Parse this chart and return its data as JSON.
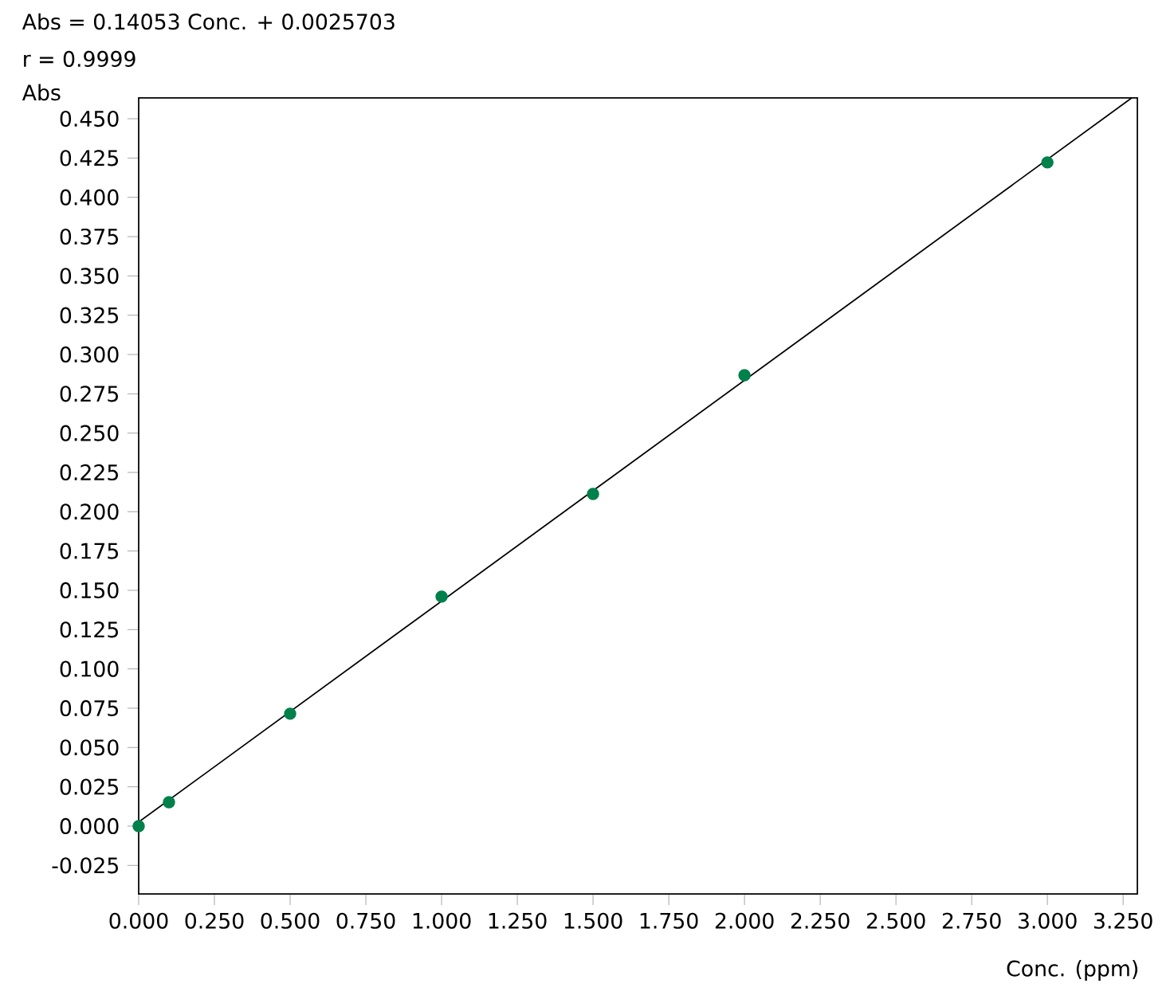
{
  "chart_data": {
    "type": "scatter",
    "annotations": [
      "Abs = 0.14053 Conc. + 0.0025703",
      "r = 0.9999"
    ],
    "xlabel": "Conc. (ppm)",
    "ylabel": "Abs",
    "xlim": [
      0,
      3.297
    ],
    "ylim": [
      -0.0431,
      0.4632
    ],
    "xticks": [
      {
        "value": 0,
        "label": "0.000"
      },
      {
        "value": 0.25,
        "label": "0.250"
      },
      {
        "value": 0.5,
        "label": "0.500"
      },
      {
        "value": 0.75,
        "label": "0.750"
      },
      {
        "value": 1,
        "label": "1.000"
      },
      {
        "value": 1.25,
        "label": "1.250"
      },
      {
        "value": 1.5,
        "label": "1.500"
      },
      {
        "value": 1.75,
        "label": "1.750"
      },
      {
        "value": 2,
        "label": "2.000"
      },
      {
        "value": 2.25,
        "label": "2.250"
      },
      {
        "value": 2.5,
        "label": "2.500"
      },
      {
        "value": 2.75,
        "label": "2.750"
      },
      {
        "value": 3,
        "label": "3.000"
      },
      {
        "value": 3.25,
        "label": "3.250"
      }
    ],
    "yticks": [
      {
        "value": -0.025,
        "label": "-0.025"
      },
      {
        "value": 0,
        "label": "0.000"
      },
      {
        "value": 0.025,
        "label": "0.025"
      },
      {
        "value": 0.05,
        "label": "0.050"
      },
      {
        "value": 0.075,
        "label": "0.075"
      },
      {
        "value": 0.1,
        "label": "0.100"
      },
      {
        "value": 0.125,
        "label": "0.125"
      },
      {
        "value": 0.15,
        "label": "0.150"
      },
      {
        "value": 0.175,
        "label": "0.175"
      },
      {
        "value": 0.2,
        "label": "0.200"
      },
      {
        "value": 0.225,
        "label": "0.225"
      },
      {
        "value": 0.25,
        "label": "0.250"
      },
      {
        "value": 0.275,
        "label": "0.275"
      },
      {
        "value": 0.3,
        "label": "0.300"
      },
      {
        "value": 0.325,
        "label": "0.325"
      },
      {
        "value": 0.35,
        "label": "0.350"
      },
      {
        "value": 0.375,
        "label": "0.375"
      },
      {
        "value": 0.4,
        "label": "0.400"
      },
      {
        "value": 0.425,
        "label": "0.425"
      },
      {
        "value": 0.45,
        "label": "0.450"
      }
    ],
    "grid": false,
    "series": [
      {
        "type": "line",
        "color": "#000000",
        "line_style": "solid",
        "marker": "none",
        "x": [
          0,
          3.278
        ],
        "values": [
          0.0026,
          0.4632
        ]
      },
      {
        "color": "#00804a",
        "marker": "circle",
        "x": [
          0,
          0.1,
          0.5,
          1.0,
          1.5,
          2.0,
          3.0
        ],
        "values": [
          0.0,
          0.0152,
          0.0715,
          0.146,
          0.2113,
          0.2868,
          0.4222
        ]
      }
    ]
  }
}
